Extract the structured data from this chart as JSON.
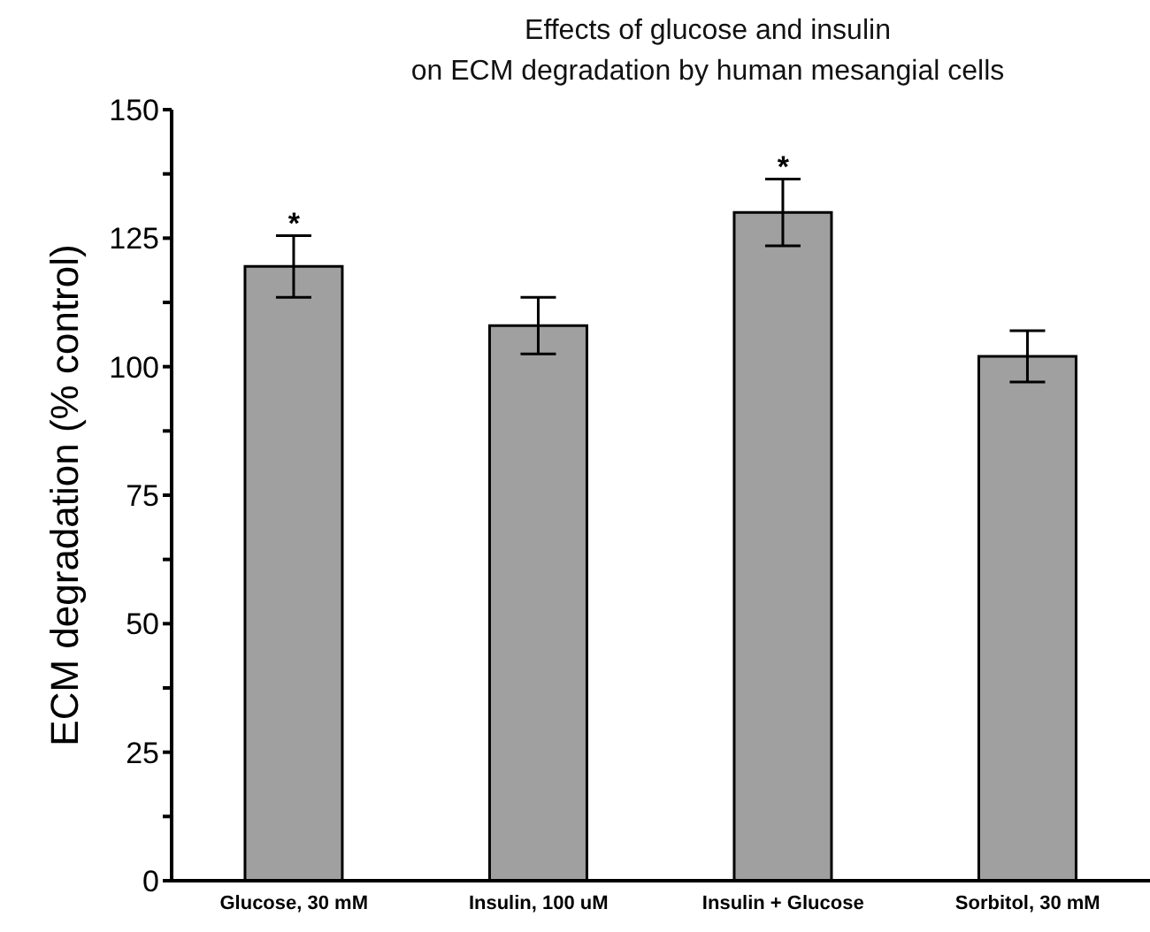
{
  "chart_data": {
    "type": "bar",
    "title": "Effects of glucose and insulin\non ECM degradation by human mesangial cells",
    "ylabel": "ECM degradation (% control)",
    "categories": [
      "Glucose, 30 mM",
      "Insulin, 100 uM",
      "Insulin + Glucose",
      "Sorbitol, 30 mM"
    ],
    "values": [
      119.5,
      108,
      130,
      102
    ],
    "errors": [
      6,
      5.5,
      6.5,
      5
    ],
    "color": "#a0a0a0",
    "ylim": [
      0,
      150
    ],
    "yticks": [
      0,
      {
        "value": 12.5,
        "label": null
      },
      25,
      {
        "value": 37.5,
        "label": null
      },
      50,
      {
        "value": 62.5,
        "label": null
      },
      75,
      {
        "value": 87.5,
        "label": null
      },
      100,
      {
        "value": 112.5,
        "label": null
      },
      125,
      {
        "value": 137.5,
        "label": null
      },
      150
    ],
    "annotations": [
      {
        "text": "*",
        "x": "Glucose, 30 mM",
        "y": 125.5
      },
      {
        "text": "*",
        "x": "Insulin + Glucose",
        "y": 136.5
      }
    ],
    "grid": false,
    "legend": false
  }
}
